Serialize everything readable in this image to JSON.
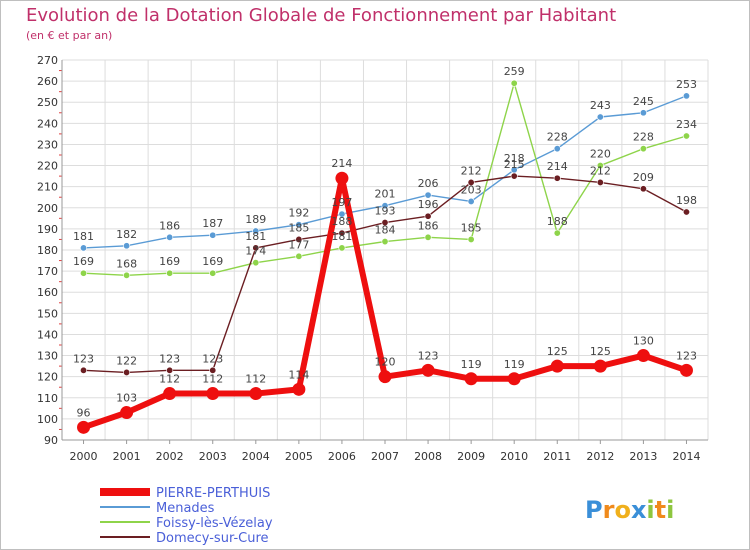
{
  "chart_data": {
    "type": "line",
    "title": "Evolution de la Dotation Globale de Fonctionnement par Habitant",
    "subtitle": "(en € et par an)",
    "xlabel": "",
    "ylabel": "",
    "categories": [
      "2000",
      "2001",
      "2002",
      "2003",
      "2004",
      "2005",
      "2006",
      "2007",
      "2008",
      "2009",
      "2010",
      "2011",
      "2012",
      "2013",
      "2014"
    ],
    "ylim": [
      90,
      270
    ],
    "yticks": [
      90,
      100,
      110,
      120,
      130,
      140,
      150,
      160,
      170,
      180,
      190,
      200,
      210,
      220,
      230,
      240,
      250,
      260,
      270
    ],
    "grid": true,
    "legend_position": "bottom-left",
    "series": [
      {
        "name": "Menades",
        "color": "#5a9bd5",
        "values": [
          181,
          182,
          186,
          187,
          189,
          192,
          197,
          201,
          206,
          203,
          218,
          228,
          243,
          245,
          253
        ],
        "labels": [
          "181",
          "182",
          "186",
          "187",
          "189",
          "192",
          "197",
          "201",
          "206",
          "203",
          "218",
          "228",
          "243",
          "245",
          "253"
        ]
      },
      {
        "name": "Foissy-lès-Vézelay",
        "color": "#8ed44a",
        "values": [
          169,
          168,
          169,
          169,
          174,
          177,
          181,
          184,
          186,
          185,
          259,
          188,
          220,
          228,
          234
        ],
        "labels": [
          "169",
          "168",
          "169",
          "169",
          "174",
          "177",
          "181",
          "184",
          "186",
          "185",
          "259",
          "188",
          "220",
          "228",
          "234"
        ]
      },
      {
        "name": "Domecy-sur-Cure",
        "color": "#6b1e22",
        "values": [
          123,
          122,
          123,
          123,
          181,
          185,
          188,
          193,
          196,
          212,
          215,
          214,
          212,
          209,
          198
        ],
        "labels": [
          "123",
          "122",
          "123",
          "123",
          "181",
          "185",
          "188",
          "193",
          "196",
          "212",
          "215",
          "214",
          "212",
          "209",
          "198"
        ]
      },
      {
        "name": "PIERRE-PERTHUIS",
        "color": "#ee0f0f",
        "values": [
          96,
          103,
          112,
          112,
          112,
          114,
          214,
          120,
          123,
          119,
          119,
          125,
          125,
          130,
          123
        ],
        "labels": [
          "96",
          "103",
          "112",
          "112",
          "112",
          "114",
          "214",
          "120",
          "123",
          "119",
          "119",
          "125",
          "125",
          "130",
          "123"
        ]
      }
    ],
    "legend": [
      "PIERRE-PERTHUIS",
      "Menades",
      "Foissy-lès-Vézelay",
      "Domecy-sur-Cure"
    ]
  },
  "logo": {
    "letters": [
      "P",
      "r",
      "o",
      "x",
      "i",
      "t",
      "i"
    ],
    "colors": [
      "#3a8fd8",
      "#f08a1c",
      "#f0b01c",
      "#3a8fd8",
      "#8ec63f",
      "#f08a1c",
      "#8ec63f"
    ]
  }
}
